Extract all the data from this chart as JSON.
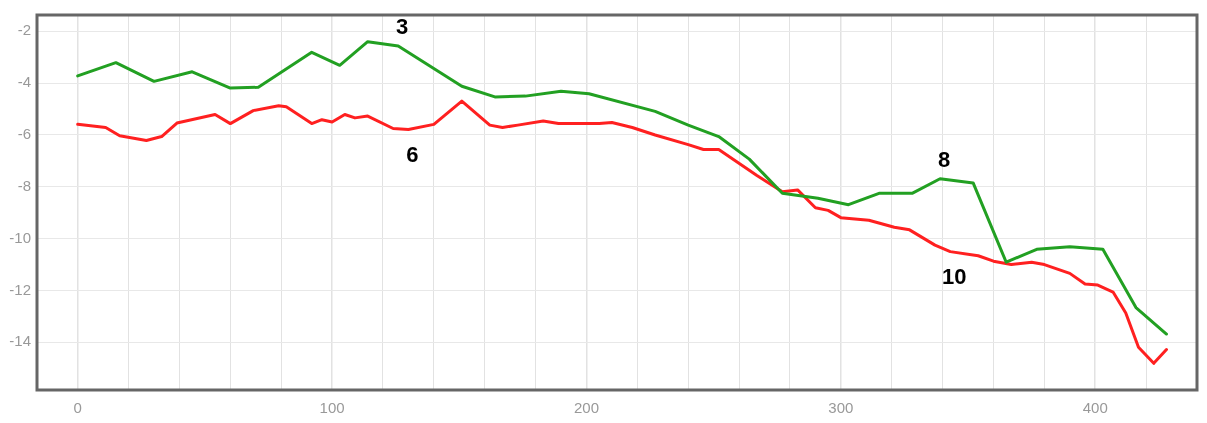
{
  "chart_data": {
    "type": "line",
    "x": [
      0,
      15,
      30,
      45,
      60,
      71,
      92,
      103,
      114,
      126,
      151,
      164,
      176,
      190,
      201,
      227,
      240,
      252,
      264,
      277,
      291,
      303,
      315,
      328,
      339,
      352,
      365,
      377,
      390,
      403,
      416,
      428
    ],
    "series": [
      {
        "color": "#22a022",
        "values": [
          -3.72,
          -3.21,
          -3.93,
          -3.56,
          -4.19,
          -4.16,
          -2.81,
          -3.31,
          -2.4,
          -2.57,
          -4.12,
          -4.53,
          -4.5,
          -4.31,
          -4.41,
          -5.09,
          -5.62,
          -6.06,
          -6.93,
          -8.25,
          -8.44,
          -8.69,
          -8.25,
          -8.25,
          -7.69,
          -7.85,
          -10.91,
          -10.41,
          -10.31,
          -10.41,
          -12.66,
          -13.68
        ]
      },
      {
        "color": "#ff2020",
        "x": [
          0,
          11,
          16.5,
          27,
          33,
          39,
          54,
          60,
          69,
          79,
          82,
          92,
          96,
          100,
          105,
          109,
          114,
          124,
          130,
          140,
          151,
          162,
          167,
          173,
          183,
          189,
          201,
          205,
          210,
          218,
          227,
          240,
          246,
          252,
          267,
          277,
          283,
          290,
          295,
          300,
          311,
          321,
          327,
          337,
          343,
          354,
          360,
          367,
          375,
          380,
          390,
          396,
          401,
          407,
          412,
          417,
          423,
          428
        ],
        "values": [
          -5.59,
          -5.71,
          -6.03,
          -6.21,
          -6.06,
          -5.54,
          -5.21,
          -5.56,
          -5.06,
          -4.87,
          -4.91,
          -5.56,
          -5.41,
          -5.5,
          -5.21,
          -5.34,
          -5.27,
          -5.75,
          -5.79,
          -5.59,
          -4.69,
          -5.62,
          -5.71,
          -5.62,
          -5.46,
          -5.56,
          -5.56,
          -5.56,
          -5.52,
          -5.71,
          -6.0,
          -6.37,
          -6.56,
          -6.56,
          -7.56,
          -8.19,
          -8.12,
          -8.81,
          -8.91,
          -9.19,
          -9.29,
          -9.56,
          -9.66,
          -10.25,
          -10.5,
          -10.66,
          -10.87,
          -11.0,
          -10.91,
          -11.0,
          -11.34,
          -11.75,
          -11.79,
          -12.06,
          -12.87,
          -14.19,
          -14.81,
          -14.28
        ]
      }
    ],
    "xlim": [
      -16,
      440
    ],
    "xticks": [
      0,
      {
        "value": 20,
        "label": null
      },
      {
        "value": 40,
        "label": null
      },
      {
        "value": 60,
        "label": null
      },
      {
        "value": 80,
        "label": null
      },
      100,
      {
        "value": 120,
        "label": null
      },
      {
        "value": 140,
        "label": null
      },
      {
        "value": 160,
        "label": null
      },
      {
        "value": 180,
        "label": null
      },
      200,
      {
        "value": 220,
        "label": null
      },
      {
        "value": 240,
        "label": null
      },
      {
        "value": 260,
        "label": null
      },
      {
        "value": 280,
        "label": null
      },
      300,
      {
        "value": 320,
        "label": null
      },
      {
        "value": 340,
        "label": null
      },
      {
        "value": 360,
        "label": null
      },
      {
        "value": 380,
        "label": null
      },
      400,
      {
        "value": 420,
        "label": null
      },
      {
        "value": 440,
        "label": null
      }
    ],
    "ylim": [
      -15.84,
      -1.37
    ],
    "yticks": [
      -14,
      -12,
      -10,
      -8,
      -6,
      -4,
      -2
    ],
    "annotations": [
      {
        "text": "3",
        "x": 126,
        "y": -2.57
      },
      {
        "text": "6",
        "x": 130,
        "y": -5.79
      },
      {
        "text": "8",
        "x": 339,
        "y": -7.69
      },
      {
        "text": "10",
        "x": 343,
        "y": -10.5
      }
    ],
    "grid": true,
    "legend": false,
    "marker": "none",
    "line_style": "solid"
  }
}
